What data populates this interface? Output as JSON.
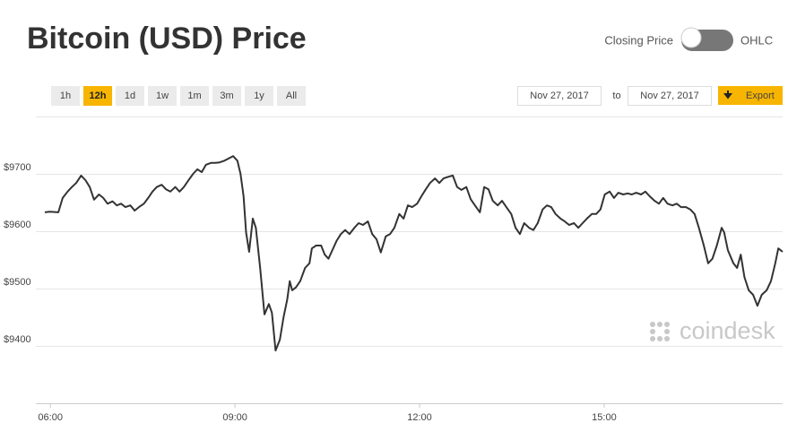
{
  "header": {
    "title": "Bitcoin (USD) Price",
    "toggle_left": "Closing Price",
    "toggle_right": "OHLC"
  },
  "controls": {
    "ranges": [
      "1h",
      "12h",
      "1d",
      "1w",
      "1m",
      "3m",
      "1y",
      "All"
    ],
    "active_range": 1,
    "date_from": "Nov 27, 2017",
    "date_sep": "to",
    "date_to": "Nov 27, 2017",
    "export": "Export"
  },
  "watermark": "coindesk",
  "chart_data": {
    "type": "line",
    "color": "#333333",
    "xlim": [
      5.91,
      17.9
    ],
    "ylim": [
      9300,
      9800
    ],
    "xticks": [
      {
        "value": 6,
        "label": "06:00"
      },
      {
        "value": 9,
        "label": "09:00"
      },
      {
        "value": 12,
        "label": "12:00"
      },
      {
        "value": 15,
        "label": "15:00"
      }
    ],
    "yticks": [
      {
        "value": 9400,
        "label": "$9400"
      },
      {
        "value": 9500,
        "label": "$9500"
      },
      {
        "value": 9600,
        "label": "$9600"
      },
      {
        "value": 9700,
        "label": "$9700"
      }
    ],
    "grid": true,
    "x": [
      5.91,
      5.99,
      6.13,
      6.2,
      6.28,
      6.35,
      6.42,
      6.5,
      6.57,
      6.64,
      6.71,
      6.79,
      6.86,
      6.93,
      7.01,
      7.08,
      7.15,
      7.22,
      7.3,
      7.37,
      7.44,
      7.52,
      7.59,
      7.66,
      7.73,
      7.81,
      7.88,
      7.95,
      8.03,
      8.1,
      8.17,
      8.24,
      8.32,
      8.39,
      8.46,
      8.53,
      8.61,
      8.68,
      8.75,
      8.83,
      8.9,
      8.97,
      9.04,
      9.09,
      9.14,
      9.18,
      9.23,
      9.29,
      9.34,
      9.41,
      9.48,
      9.55,
      9.6,
      9.66,
      9.73,
      9.79,
      9.85,
      9.89,
      9.93,
      9.99,
      10.06,
      10.14,
      10.21,
      10.25,
      10.32,
      10.4,
      10.46,
      10.52,
      10.57,
      10.65,
      10.72,
      10.79,
      10.86,
      10.94,
      11.01,
      11.08,
      11.16,
      11.23,
      11.3,
      11.37,
      11.45,
      11.52,
      11.59,
      11.67,
      11.74,
      11.81,
      11.88,
      11.96,
      12.03,
      12.1,
      12.17,
      12.25,
      12.32,
      12.39,
      12.47,
      12.54,
      12.61,
      12.68,
      12.76,
      12.83,
      12.9,
      12.98,
      13.05,
      13.12,
      13.19,
      13.27,
      13.34,
      13.41,
      13.49,
      13.56,
      13.63,
      13.7,
      13.78,
      13.85,
      13.92,
      14.0,
      14.07,
      14.14,
      14.21,
      14.29,
      14.36,
      14.43,
      14.51,
      14.58,
      14.65,
      14.72,
      14.8,
      14.87,
      14.94,
      15.01,
      15.09,
      15.16,
      15.23,
      15.31,
      15.38,
      15.45,
      15.52,
      15.6,
      15.67,
      15.74,
      15.82,
      15.89,
      15.96,
      16.03,
      16.11,
      16.18,
      16.25,
      16.33,
      16.4,
      16.47,
      16.54,
      16.62,
      16.69,
      16.76,
      16.83,
      16.91,
      16.95,
      17.01,
      17.1,
      17.16,
      17.22,
      17.28,
      17.35,
      17.42,
      17.49,
      17.56,
      17.64,
      17.71,
      17.78,
      17.83,
      17.9
    ],
    "values": [
      9633,
      9634,
      9633,
      9658,
      9669,
      9677,
      9684,
      9697,
      9689,
      9677,
      9655,
      9664,
      9658,
      9648,
      9652,
      9645,
      9648,
      9642,
      9645,
      9636,
      9642,
      9648,
      9658,
      9669,
      9677,
      9681,
      9673,
      9669,
      9677,
      9669,
      9677,
      9688,
      9700,
      9708,
      9703,
      9716,
      9719,
      9719,
      9720,
      9723,
      9727,
      9731,
      9723,
      9700,
      9661,
      9598,
      9564,
      9622,
      9606,
      9536,
      9455,
      9473,
      9458,
      9392,
      9411,
      9450,
      9481,
      9513,
      9497,
      9502,
      9513,
      9536,
      9544,
      9570,
      9575,
      9575,
      9559,
      9552,
      9564,
      9583,
      9595,
      9602,
      9595,
      9606,
      9614,
      9611,
      9617,
      9595,
      9586,
      9563,
      9591,
      9595,
      9606,
      9630,
      9622,
      9645,
      9642,
      9648,
      9661,
      9673,
      9684,
      9692,
      9684,
      9692,
      9695,
      9697,
      9677,
      9672,
      9677,
      9656,
      9645,
      9633,
      9677,
      9673,
      9653,
      9645,
      9653,
      9642,
      9630,
      9606,
      9595,
      9614,
      9606,
      9602,
      9614,
      9638,
      9645,
      9642,
      9630,
      9622,
      9617,
      9611,
      9614,
      9606,
      9614,
      9622,
      9630,
      9630,
      9638,
      9664,
      9669,
      9658,
      9667,
      9664,
      9666,
      9664,
      9667,
      9664,
      9669,
      9661,
      9653,
      9648,
      9658,
      9648,
      9645,
      9648,
      9642,
      9642,
      9638,
      9630,
      9606,
      9575,
      9544,
      9552,
      9575,
      9606,
      9598,
      9567,
      9544,
      9536,
      9559,
      9520,
      9497,
      9489,
      9470,
      9489,
      9497,
      9513,
      9544,
      9570,
      9564
    ]
  }
}
